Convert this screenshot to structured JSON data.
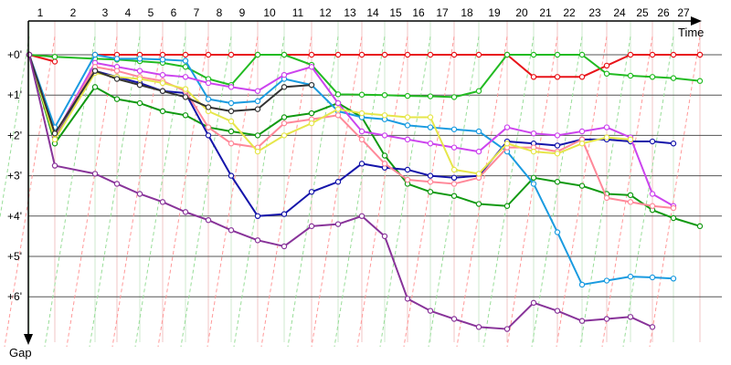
{
  "chart_data": {
    "type": "line",
    "title": "",
    "xlabel": "Time",
    "ylabel": "Gap",
    "x_ticks": [
      "1",
      "2",
      "3",
      "4",
      "5",
      "6",
      "7",
      "8",
      "9",
      "10",
      "11",
      "12",
      "13",
      "14",
      "15",
      "16",
      "17",
      "18",
      "19",
      "20",
      "21",
      "22",
      "23",
      "24",
      "25",
      "26",
      "27"
    ],
    "y_ticks": [
      "+0'",
      "+1'",
      "+2'",
      "+3'",
      "+4'",
      "+5'",
      "+6'"
    ],
    "ylim": [
      0,
      7
    ],
    "y_inverted": true,
    "grid": true,
    "legend": "none",
    "colors": {
      "axis": "#000000",
      "grid_h": "#555555",
      "grid_v_major": "#999999",
      "grid_v_minor": "#cccccc",
      "diag_red": "#ff9999",
      "diag_green": "#99dd99"
    },
    "series": [
      {
        "color": "#e8141a",
        "values": [
          0.0,
          0.17
        ]
      },
      {
        "color": "#e8141a",
        "values": [
          0.0,
          0.0,
          0.0,
          0.0,
          0.0,
          0.0,
          0.0,
          0.0,
          0.0,
          0.0,
          0.0,
          0.0,
          0.0,
          0.0,
          0.0,
          0.0,
          0.0,
          0.0,
          0.55,
          0.55,
          0.55,
          0.27,
          0.0,
          0.0,
          0.0,
          0.0,
          0.0
        ],
        "x_offset": 3
      },
      {
        "color": "#22bb22",
        "values": [
          0.0,
          0.05,
          0.1,
          0.12,
          0.16,
          0.2,
          0.3,
          0.6,
          0.75,
          0.0,
          0.0,
          0.25,
          0.98,
          0.99,
          1.0,
          1.02,
          1.03,
          1.05,
          0.9,
          0.0,
          0.0,
          0.0,
          0.0,
          0.47,
          0.52,
          0.55,
          0.58,
          0.65
        ],
        "x_offset": 1
      },
      {
        "color": "#119911",
        "values": [
          0.0,
          2.2,
          0.8,
          1.1,
          1.2,
          1.4,
          1.5,
          1.8,
          1.9,
          2.0,
          1.55,
          1.45,
          1.2,
          1.55,
          2.5,
          3.2,
          3.4,
          3.5,
          3.7,
          3.75,
          3.05,
          3.15,
          3.25,
          3.45,
          3.48,
          3.85,
          4.05,
          4.25
        ],
        "x_offset": 1
      },
      {
        "color": "#1515aa",
        "values": [
          0.0,
          2.05,
          0.4,
          0.55,
          0.7,
          0.9,
          0.95,
          2.0,
          3.0,
          4.0,
          3.95,
          3.4,
          3.15,
          2.7,
          2.8,
          2.85,
          3.0,
          3.05,
          3.0,
          2.15,
          2.2,
          2.25,
          2.1,
          2.1,
          2.15,
          2.15,
          2.2
        ],
        "x_offset": 1
      },
      {
        "color": "#1a9be0",
        "values": [
          0.0,
          1.8,
          0.0,
          0.1,
          0.1,
          0.12,
          0.15,
          1.1,
          1.2,
          1.15,
          0.6,
          0.75,
          1.4,
          1.55,
          1.6,
          1.75,
          1.8,
          1.85,
          1.9,
          2.4,
          3.2,
          4.4,
          5.7,
          5.6,
          5.5,
          5.52,
          5.55
        ],
        "x_offset": 1
      },
      {
        "color": "#cc44ee",
        "values": [
          0.0,
          2.0,
          0.2,
          0.3,
          0.4,
          0.5,
          0.55,
          0.7,
          0.8,
          0.9,
          0.5,
          0.3,
          1.2,
          1.9,
          2.0,
          2.1,
          2.2,
          2.3,
          2.4,
          1.8,
          1.95,
          2.0,
          1.9,
          1.8,
          2.05,
          3.45,
          3.75
        ],
        "x_offset": 1
      },
      {
        "color": "#ff8899",
        "values": [
          0.0,
          2.0,
          0.3,
          0.4,
          0.55,
          0.65,
          0.9,
          1.8,
          2.2,
          2.3,
          1.7,
          1.6,
          1.5,
          2.1,
          2.7,
          3.1,
          3.15,
          3.2,
          3.05,
          2.3,
          2.3,
          2.4,
          2.1,
          3.55,
          3.65,
          3.75,
          3.8
        ],
        "x_offset": 1
      },
      {
        "color": "#e6e64a",
        "values": [
          0.0,
          2.1,
          0.45,
          0.55,
          0.6,
          0.7,
          0.85,
          1.4,
          1.65,
          2.4,
          2.0,
          1.7,
          1.35,
          1.45,
          1.5,
          1.55,
          1.55,
          2.85,
          2.95,
          2.2,
          2.4,
          2.45,
          2.2,
          2.05,
          2.1
        ],
        "x_offset": 1
      },
      {
        "color": "#333333",
        "values": [
          0.0,
          1.95,
          0.4,
          0.6,
          0.75,
          0.9,
          1.05,
          1.3,
          1.4,
          1.35,
          0.8,
          0.75
        ],
        "x_offset": 1
      },
      {
        "color": "#883399",
        "values": [
          0.0,
          2.75,
          2.95,
          3.2,
          3.45,
          3.65,
          3.9,
          4.1,
          4.35,
          4.6,
          4.75,
          4.25,
          4.2,
          4.0,
          4.5,
          6.05,
          6.35,
          6.55,
          6.75,
          6.8,
          6.15,
          6.35,
          6.6,
          6.55,
          6.5,
          6.75
        ],
        "x_offset": 1
      }
    ]
  }
}
